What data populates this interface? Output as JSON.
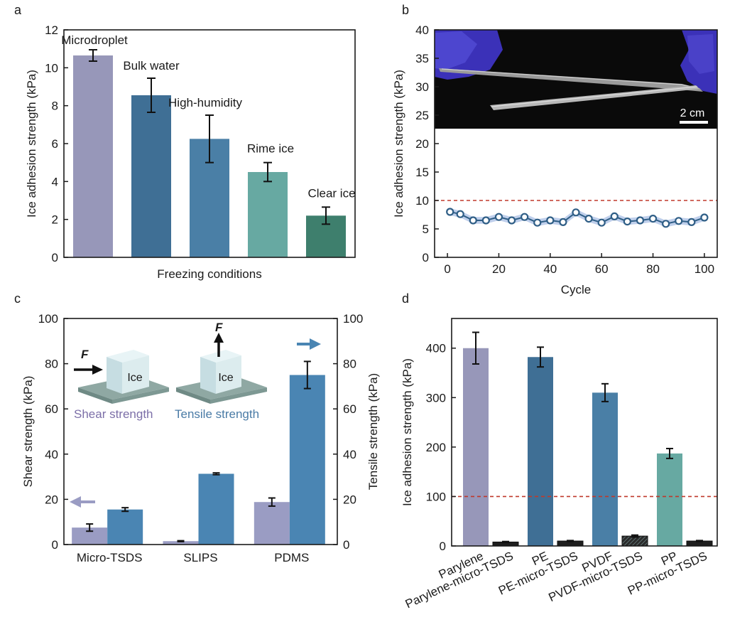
{
  "colors": {
    "lavender": "#9797B9",
    "steel_dark": "#3F6F95",
    "steel_mid": "#4A7FA6",
    "steel_blue": "#4A85B3",
    "teal_light": "#67A9A2",
    "teal_dark": "#3E7F6D",
    "line_blue": "#2F5E86",
    "band_blue": "#AFC3E6",
    "ref_red": "#C0392B",
    "photo_bg": "#0a0a0a",
    "glove": "#3B31B8"
  },
  "panels": {
    "a": {
      "label": "a",
      "chart_data": {
        "type": "bar",
        "xlabel": "Freezing conditions",
        "ylabel": "Ice adhesion strength (kPa)",
        "ylim": [
          0,
          12
        ],
        "yticks": [
          0,
          2,
          4,
          6,
          8,
          10,
          12
        ],
        "categories": [
          "Microdroplet",
          "Bulk water",
          "High-humidity",
          "Rime ice",
          "Clear ice"
        ],
        "values": [
          10.65,
          8.55,
          6.25,
          4.5,
          2.2
        ],
        "errors": [
          0.3,
          0.9,
          1.25,
          0.5,
          0.45
        ],
        "colors": [
          "#9797B9",
          "#3F6F95",
          "#4A7FA6",
          "#67A9A2",
          "#3E7F6D"
        ],
        "grid": false
      }
    },
    "b": {
      "label": "b",
      "chart_data": {
        "type": "line",
        "xlabel": "Cycle",
        "ylabel": "Ice adhesion strength (kPa)",
        "xlim": [
          -5,
          105
        ],
        "ylim": [
          0,
          40
        ],
        "xticks": [
          0,
          20,
          40,
          60,
          80,
          100
        ],
        "yticks": [
          0,
          5,
          10,
          15,
          20,
          25,
          30,
          35,
          40
        ],
        "x": [
          1,
          5,
          10,
          15,
          20,
          25,
          30,
          35,
          40,
          45,
          50,
          55,
          60,
          65,
          70,
          75,
          80,
          85,
          90,
          95,
          100
        ],
        "y": [
          8.0,
          7.6,
          6.5,
          6.5,
          7.1,
          6.5,
          7.1,
          6.1,
          6.5,
          6.2,
          7.9,
          6.8,
          6.1,
          7.2,
          6.3,
          6.5,
          6.8,
          5.9,
          6.4,
          6.2,
          7.0
        ],
        "reference_line": 10,
        "inset_scale_label": "2 cm",
        "grid": false
      }
    },
    "c": {
      "label": "c",
      "chart_data": {
        "type": "bar",
        "ylabel": "Shear strength (kPa)",
        "ylabel_right": "Tensile strength (kPa)",
        "ylim": [
          0,
          100
        ],
        "yticks": [
          0,
          20,
          40,
          60,
          80,
          100
        ],
        "categories": [
          "Micro-TSDS",
          "SLIPS",
          "PDMS"
        ],
        "series": [
          {
            "name": "Shear strength",
            "values": [
              7.5,
              1.5,
              18.8
            ],
            "errors": [
              1.6,
              0.2,
              1.8
            ],
            "color": "#9A9CC3"
          },
          {
            "name": "Tensile strength",
            "values": [
              15.5,
              31.3,
              75.0
            ],
            "errors": [
              0.8,
              0.4,
              6.0
            ],
            "color": "#4A85B3"
          }
        ],
        "inset_labels": {
          "force": "F",
          "ice": "Ice",
          "shear": "Shear strength",
          "tensile": "Tensile strength"
        },
        "grid": false
      }
    },
    "d": {
      "label": "d",
      "chart_data": {
        "type": "bar",
        "ylabel": "Ice adhesion strength (kPa)",
        "ylim": [
          0,
          460
        ],
        "yticks": [
          0,
          100,
          200,
          300,
          400
        ],
        "categories": [
          "Parylene",
          "Parylene-micro-TSDS",
          "PE",
          "PE-micro-TSDS",
          "PVDF",
          "PVDF-micro-TSDS",
          "PP",
          "PP-micro-TSDS"
        ],
        "values": [
          400,
          8,
          382,
          10,
          310,
          20,
          187,
          10
        ],
        "errors": [
          32,
          1,
          20,
          1,
          18,
          2,
          10,
          1
        ],
        "reference_line": 100,
        "grid": false
      }
    }
  }
}
